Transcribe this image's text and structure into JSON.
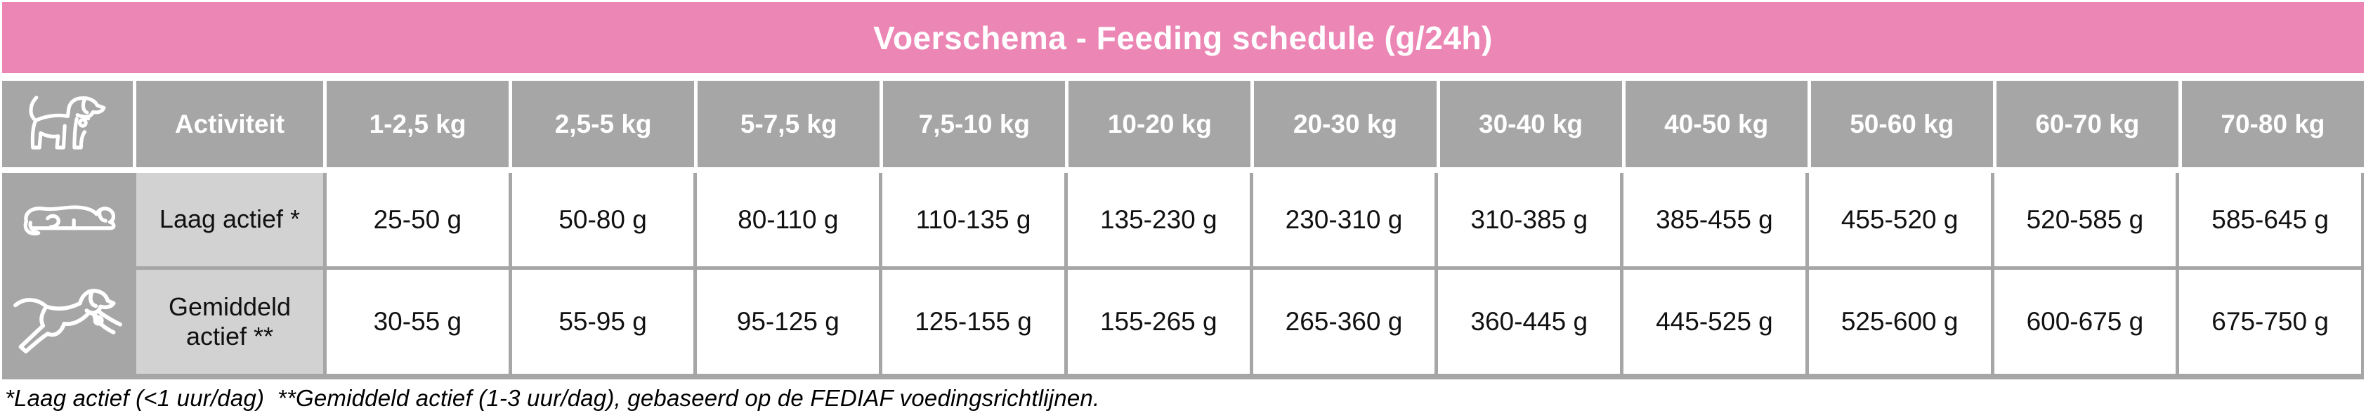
{
  "title": "Voerschema - Feeding schedule (g/24h)",
  "colors": {
    "pink": "#ec86b5",
    "gray": "#a6a6a6",
    "light_gray": "#d2d2d2",
    "cell_white": "#ffffff",
    "text_black": "#111111"
  },
  "icons": {
    "header": "standing-dog-icon",
    "row_low": "lying-dog-icon",
    "row_avg": "running-dog-icon"
  },
  "table": {
    "activity_header": "Activiteit",
    "weight_headers": [
      "1-2,5 kg",
      "2,5-5 kg",
      "5-7,5 kg",
      "7,5-10 kg",
      "10-20 kg",
      "20-30 kg",
      "30-40 kg",
      "40-50 kg",
      "50-60 kg",
      "60-70 kg",
      "70-80 kg"
    ],
    "rows": [
      {
        "icon": "lying-dog-icon",
        "activity": "Laag actief *",
        "values": [
          "25-50 g",
          "50-80 g",
          "80-110 g",
          "110-135 g",
          "135-230 g",
          "230-310 g",
          "310-385 g",
          "385-455 g",
          "455-520 g",
          "520-585 g",
          "585-645 g"
        ]
      },
      {
        "icon": "running-dog-icon",
        "activity": "Gemiddeld actief **",
        "values": [
          "30-55 g",
          "55-95 g",
          "95-125 g",
          "125-155 g",
          "155-265 g",
          "265-360 g",
          "360-445 g",
          "445-525 g",
          "525-600 g",
          "600-675 g",
          "675-750 g"
        ]
      }
    ]
  },
  "footnote": "*Laag actief (<1 uur/dag)  **Gemiddeld actief (1-3 uur/dag), gebaseerd op de FEDIAF voedingsrichtlijnen."
}
